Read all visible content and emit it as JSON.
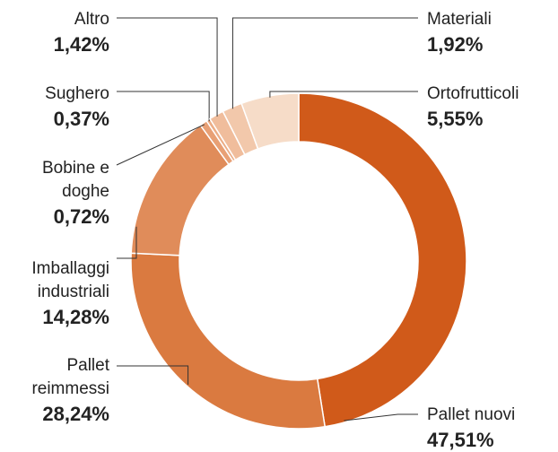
{
  "chart_data": {
    "type": "donut",
    "categories": [
      "Pallet nuovi",
      "Pallet reimmessi",
      "Imballaggi industriali",
      "Bobine e doghe",
      "Sughero",
      "Altro",
      "Materiali",
      "Ortofrutticoli"
    ],
    "values": [
      47.51,
      28.24,
      14.28,
      0.72,
      0.37,
      1.42,
      1.92,
      5.55
    ],
    "value_labels": [
      "47,51%",
      "28,24%",
      "14,28%",
      "0,72%",
      "0,37%",
      "1,42%",
      "1,92%",
      "5,55%"
    ],
    "colors": [
      "#d05a1a",
      "#da7a40",
      "#e08c5a",
      "#e8a075",
      "#ecad86",
      "#f0bd9c",
      "#f2c8ab",
      "#f6dcc8"
    ]
  }
}
